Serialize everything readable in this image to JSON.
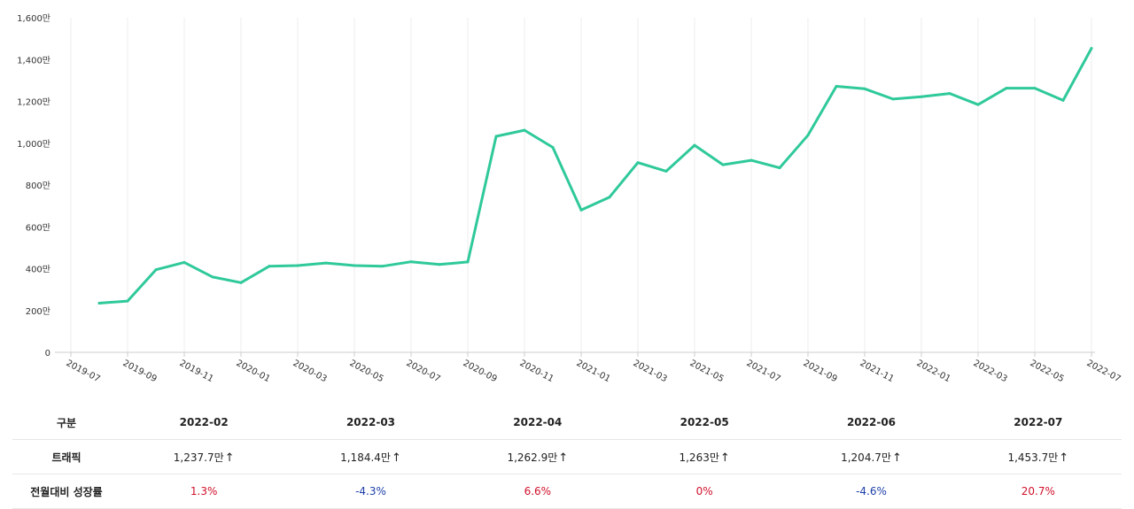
{
  "chart_data": {
    "type": "line",
    "x_tick_labels": [
      "2019-07",
      "2019-09",
      "2019-11",
      "2020-01",
      "2020-03",
      "2020-05",
      "2020-07",
      "2020-09",
      "2020-11",
      "2021-01",
      "2021-03",
      "2021-05",
      "2021-07",
      "2021-09",
      "2021-11",
      "2022-01",
      "2022-03",
      "2022-05",
      "2022-07"
    ],
    "y_tick_labels": [
      "0",
      "200만",
      "400만",
      "600만",
      "800만",
      "1,000만",
      "1,200만",
      "1,400만",
      "1,600만"
    ],
    "ylim": [
      0,
      1600
    ],
    "y_unit": "만",
    "series": [
      {
        "color": "#2fc99a",
        "points": [
          {
            "x": "2019-08",
            "y": 235
          },
          {
            "x": "2019-09",
            "y": 245
          },
          {
            "x": "2019-10",
            "y": 395
          },
          {
            "x": "2019-11",
            "y": 430
          },
          {
            "x": "2019-12",
            "y": 360
          },
          {
            "x": "2020-01",
            "y": 333
          },
          {
            "x": "2020-02",
            "y": 412
          },
          {
            "x": "2020-03",
            "y": 415
          },
          {
            "x": "2020-04",
            "y": 427
          },
          {
            "x": "2020-05",
            "y": 415
          },
          {
            "x": "2020-06",
            "y": 412
          },
          {
            "x": "2020-07",
            "y": 433
          },
          {
            "x": "2020-08",
            "y": 420
          },
          {
            "x": "2020-09",
            "y": 432
          },
          {
            "x": "2020-10",
            "y": 1033
          },
          {
            "x": "2020-11",
            "y": 1062
          },
          {
            "x": "2020-12",
            "y": 980
          },
          {
            "x": "2021-01",
            "y": 680
          },
          {
            "x": "2021-02",
            "y": 742
          },
          {
            "x": "2021-03",
            "y": 907
          },
          {
            "x": "2021-04",
            "y": 866
          },
          {
            "x": "2021-05",
            "y": 990
          },
          {
            "x": "2021-06",
            "y": 897
          },
          {
            "x": "2021-07",
            "y": 918
          },
          {
            "x": "2021-08",
            "y": 882
          },
          {
            "x": "2021-09",
            "y": 1038
          },
          {
            "x": "2021-10",
            "y": 1272
          },
          {
            "x": "2021-11",
            "y": 1260
          },
          {
            "x": "2021-12",
            "y": 1211
          },
          {
            "x": "2022-01",
            "y": 1222
          },
          {
            "x": "2022-02",
            "y": 1237.7
          },
          {
            "x": "2022-03",
            "y": 1184.4
          },
          {
            "x": "2022-04",
            "y": 1262.9
          },
          {
            "x": "2022-05",
            "y": 1263
          },
          {
            "x": "2022-06",
            "y": 1204.7
          },
          {
            "x": "2022-07",
            "y": 1453.7
          }
        ]
      }
    ],
    "grid": "vertical",
    "title": ""
  },
  "table": {
    "header_label": "구분",
    "months": [
      "2022-02",
      "2022-03",
      "2022-04",
      "2022-05",
      "2022-06",
      "2022-07"
    ],
    "rows": {
      "traffic": {
        "label": "트래픽",
        "values": [
          "1,237.7만",
          "1,184.4만",
          "1,262.9만",
          "1,263만",
          "1,204.7만",
          "1,453.7만"
        ],
        "trend_icon": "up-arrow-icon"
      },
      "growth": {
        "label": "전월대비 성장률",
        "values": [
          "1.3%",
          "-4.3%",
          "6.6%",
          "0%",
          "-4.6%",
          "20.7%"
        ],
        "colors": {
          "positive": "#d0112b",
          "negative": "#1d3fa8"
        }
      }
    }
  }
}
